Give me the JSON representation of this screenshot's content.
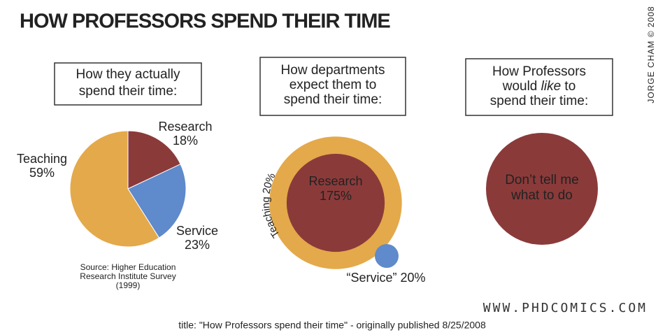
{
  "title": "HOW PROFESSORS SPEND THEIR TIME",
  "credit": "JORGE CHAM © 2008",
  "website": "WWW.PHDCOMICS.COM",
  "caption": "title: \"How Professors spend their time\" - originally published 8/25/2008",
  "chart_data": [
    {
      "type": "pie",
      "title": [
        "How they actually",
        "spend their time:"
      ],
      "categories": [
        "Research",
        "Service",
        "Teaching"
      ],
      "values": [
        18,
        23,
        59
      ],
      "value_labels": [
        "18%",
        "23%",
        "59%"
      ],
      "colors": [
        "#8b3a3a",
        "#5f8acb",
        "#e4a94a"
      ],
      "source": [
        "Source: Higher Education",
        "Research Institute Survey",
        "(1999)"
      ]
    },
    {
      "type": "circles",
      "title": [
        "How departments",
        "expect them to",
        "spend their time:"
      ],
      "categories": [
        "Research",
        "Teaching",
        "“Service”"
      ],
      "values": [
        175,
        20,
        20
      ],
      "value_labels": [
        "175%",
        "20%",
        "20%"
      ],
      "colors": [
        "#8b3a3a",
        "#e4a94a",
        "#5f8acb"
      ]
    }
  ],
  "wish_panel": {
    "title": [
      "How Professors",
      [
        "would ",
        "like",
        " to"
      ],
      "spend their time:"
    ],
    "text": [
      "Don’t tell me",
      "what to do"
    ]
  }
}
